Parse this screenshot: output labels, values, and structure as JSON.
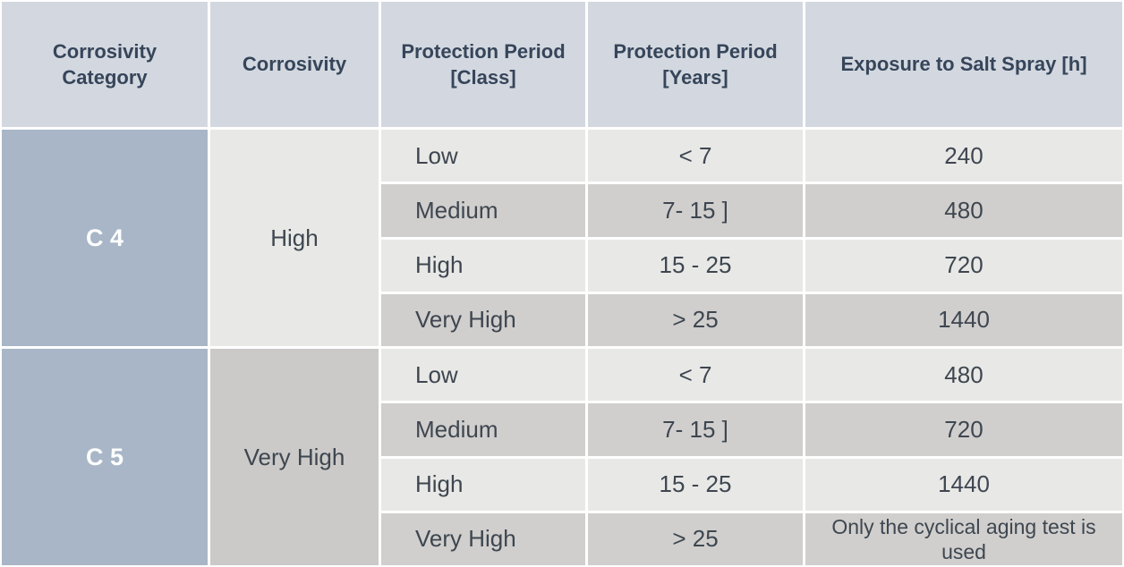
{
  "table": {
    "columns": [
      {
        "label": "Corrosivity Category"
      },
      {
        "label": "Corrosivity"
      },
      {
        "label": "Protection Period [Class]"
      },
      {
        "label": "Protection Period [Years]"
      },
      {
        "label": "Exposure to Salt Spray [h]"
      }
    ],
    "groups": [
      {
        "category": "C 4",
        "corrosivity": "High",
        "rows": [
          {
            "class": "Low",
            "years": "< 7",
            "salt_spray": "240"
          },
          {
            "class": "Medium",
            "years": "7- 15 ]",
            "salt_spray": "480"
          },
          {
            "class": "High",
            "years": "15 - 25",
            "salt_spray": "720"
          },
          {
            "class": "Very High",
            "years": "> 25",
            "salt_spray": "1440"
          }
        ]
      },
      {
        "category": "C 5",
        "corrosivity": "Very High",
        "rows": [
          {
            "class": "Low",
            "years": "< 7",
            "salt_spray": "480"
          },
          {
            "class": "Medium",
            "years": "7- 15 ]",
            "salt_spray": "720"
          },
          {
            "class": "High",
            "years": "15 - 25",
            "salt_spray": "1440"
          },
          {
            "class": "Very High",
            "years": "> 25",
            "salt_spray": "Only the cyclical aging test is used"
          }
        ]
      }
    ]
  },
  "chart_data": {
    "type": "table",
    "columns": [
      "Corrosivity Category",
      "Corrosivity",
      "Protection Period [Class]",
      "Protection Period [Years]",
      "Exposure to Salt Spray [h]"
    ],
    "rows": [
      [
        "C 4",
        "High",
        "Low",
        "< 7",
        "240"
      ],
      [
        "C 4",
        "High",
        "Medium",
        "7- 15 ]",
        "480"
      ],
      [
        "C 4",
        "High",
        "High",
        "15 - 25",
        "720"
      ],
      [
        "C 4",
        "High",
        "Very High",
        "> 25",
        "1440"
      ],
      [
        "C 5",
        "Very High",
        "Low",
        "< 7",
        "480"
      ],
      [
        "C 5",
        "Very High",
        "Medium",
        "7- 15 ]",
        "720"
      ],
      [
        "C 5",
        "Very High",
        "High",
        "15 - 25",
        "1440"
      ],
      [
        "C 5",
        "Very High",
        "Very High",
        "> 25",
        "Only the cyclical aging test is used"
      ]
    ]
  },
  "colors": {
    "header_bg": "#d3d8e0",
    "header_text": "#36455a",
    "category_bg": "#a8b6c7",
    "category_text": "#ffffff",
    "row_light_bg": "#e8e8e6",
    "row_dark_bg": "#d0cfcd",
    "corrosivity_c5_bg": "#cbcac8",
    "body_text": "#3e4650",
    "grid_line": "#ffffff"
  }
}
